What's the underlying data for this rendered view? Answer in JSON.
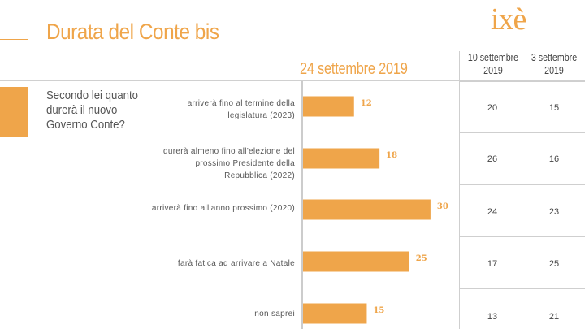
{
  "title": "Durata del Conte bis",
  "logo_text": "ixè",
  "question": "Secondo lei quanto durerà il nuovo Governo Conte?",
  "accent_color": "#EFA54A",
  "chart_data": {
    "type": "bar",
    "title": "24 settembre 2019",
    "categories": [
      "arriverà fino al termine della legislatura (2023)",
      "durerà almeno fino all'elezione del prossimo Presidente della Repubblica (2022)",
      "arriverà fino all'anno prossimo (2020)",
      "farà fatica ad arrivare a Natale",
      "non saprei"
    ],
    "series": [
      {
        "name": "24 settembre 2019",
        "values": [
          12,
          18,
          30,
          25,
          15
        ]
      }
    ],
    "orientation": "horizontal",
    "table_columns": [
      {
        "header": "10 settembre 2019",
        "values": [
          20,
          26,
          24,
          17,
          13
        ]
      },
      {
        "header": "3 settembre 2019",
        "values": [
          15,
          16,
          23,
          25,
          21
        ]
      }
    ]
  }
}
